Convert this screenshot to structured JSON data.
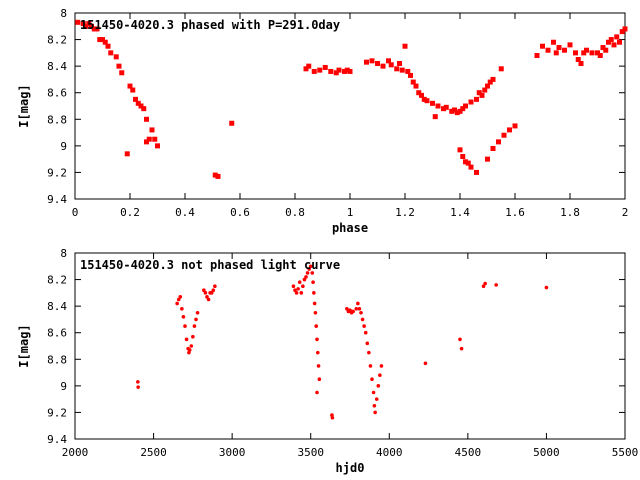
{
  "chart_data": [
    {
      "type": "scatter",
      "title": "151450-4020.3 phased with P=291.0day",
      "xlabel": "phase",
      "ylabel": "I[mag]",
      "xlim": [
        0,
        2
      ],
      "ylim": [
        9.4,
        8
      ],
      "y_inverted": true,
      "x_ticks": [
        "0",
        "0.2",
        "0.4",
        "0.6",
        "0.8",
        "1",
        "1.2",
        "1.4",
        "1.6",
        "1.8",
        "2"
      ],
      "y_ticks": [
        "8",
        "8.2",
        "8.4",
        "8.6",
        "8.8",
        "9",
        "9.2",
        "9.4"
      ],
      "marker_color": "#ff0000",
      "series": [
        {
          "points": [
            [
              0.01,
              8.07
            ],
            [
              0.03,
              8.08
            ],
            [
              0.04,
              8.1
            ],
            [
              0.05,
              8.08
            ],
            [
              0.06,
              8.1
            ],
            [
              0.07,
              8.12
            ],
            [
              0.08,
              8.12
            ],
            [
              0.09,
              8.2
            ],
            [
              0.1,
              8.2
            ],
            [
              0.11,
              8.22
            ],
            [
              0.12,
              8.25
            ],
            [
              0.13,
              8.3
            ],
            [
              0.15,
              8.33
            ],
            [
              0.16,
              8.4
            ],
            [
              0.17,
              8.45
            ],
            [
              0.19,
              9.06
            ],
            [
              0.2,
              8.55
            ],
            [
              0.21,
              8.58
            ],
            [
              0.22,
              8.65
            ],
            [
              0.23,
              8.68
            ],
            [
              0.24,
              8.7
            ],
            [
              0.25,
              8.72
            ],
            [
              0.26,
              8.8
            ],
            [
              0.26,
              8.97
            ],
            [
              0.27,
              8.95
            ],
            [
              0.28,
              8.88
            ],
            [
              0.29,
              8.95
            ],
            [
              0.3,
              9.0
            ],
            [
              0.51,
              9.22
            ],
            [
              0.52,
              9.23
            ],
            [
              0.57,
              8.83
            ],
            [
              0.84,
              8.42
            ],
            [
              0.85,
              8.4
            ],
            [
              0.87,
              8.44
            ],
            [
              0.89,
              8.43
            ],
            [
              0.91,
              8.41
            ],
            [
              0.93,
              8.44
            ],
            [
              0.95,
              8.45
            ],
            [
              0.96,
              8.43
            ],
            [
              0.98,
              8.44
            ],
            [
              0.99,
              8.43
            ],
            [
              1.0,
              8.44
            ],
            [
              1.06,
              8.37
            ],
            [
              1.08,
              8.36
            ],
            [
              1.1,
              8.38
            ],
            [
              1.12,
              8.4
            ],
            [
              1.14,
              8.36
            ],
            [
              1.15,
              8.39
            ],
            [
              1.17,
              8.42
            ],
            [
              1.18,
              8.38
            ],
            [
              1.19,
              8.43
            ],
            [
              1.2,
              8.25
            ],
            [
              1.21,
              8.44
            ],
            [
              1.22,
              8.47
            ],
            [
              1.23,
              8.52
            ],
            [
              1.24,
              8.55
            ],
            [
              1.25,
              8.6
            ],
            [
              1.26,
              8.62
            ],
            [
              1.27,
              8.65
            ],
            [
              1.28,
              8.66
            ],
            [
              1.3,
              8.68
            ],
            [
              1.31,
              8.78
            ],
            [
              1.32,
              8.7
            ],
            [
              1.34,
              8.72
            ],
            [
              1.35,
              8.71
            ],
            [
              1.37,
              8.74
            ],
            [
              1.38,
              8.73
            ],
            [
              1.39,
              8.75
            ],
            [
              1.4,
              8.74
            ],
            [
              1.41,
              8.72
            ],
            [
              1.42,
              8.7
            ],
            [
              1.44,
              8.67
            ],
            [
              1.46,
              8.65
            ],
            [
              1.47,
              8.6
            ],
            [
              1.48,
              8.62
            ],
            [
              1.49,
              8.58
            ],
            [
              1.5,
              8.55
            ],
            [
              1.51,
              8.52
            ],
            [
              1.52,
              8.5
            ],
            [
              1.55,
              8.42
            ],
            [
              1.4,
              9.03
            ],
            [
              1.41,
              9.08
            ],
            [
              1.42,
              9.12
            ],
            [
              1.43,
              9.13
            ],
            [
              1.44,
              9.16
            ],
            [
              1.46,
              9.2
            ],
            [
              1.5,
              9.1
            ],
            [
              1.52,
              9.02
            ],
            [
              1.54,
              8.97
            ],
            [
              1.56,
              8.92
            ],
            [
              1.58,
              8.88
            ],
            [
              1.6,
              8.85
            ],
            [
              1.68,
              8.32
            ],
            [
              1.7,
              8.25
            ],
            [
              1.72,
              8.28
            ],
            [
              1.74,
              8.22
            ],
            [
              1.75,
              8.3
            ],
            [
              1.76,
              8.26
            ],
            [
              1.78,
              8.28
            ],
            [
              1.8,
              8.24
            ],
            [
              1.82,
              8.3
            ],
            [
              1.83,
              8.35
            ],
            [
              1.84,
              8.38
            ],
            [
              1.85,
              8.3
            ],
            [
              1.86,
              8.28
            ],
            [
              1.88,
              8.3
            ],
            [
              1.9,
              8.3
            ],
            [
              1.91,
              8.32
            ],
            [
              1.92,
              8.26
            ],
            [
              1.93,
              8.28
            ],
            [
              1.94,
              8.22
            ],
            [
              1.95,
              8.2
            ],
            [
              1.96,
              8.24
            ],
            [
              1.97,
              8.18
            ],
            [
              1.98,
              8.22
            ],
            [
              1.99,
              8.14
            ],
            [
              2.0,
              8.12
            ]
          ]
        }
      ]
    },
    {
      "type": "scatter",
      "title": "151450-4020.3 not phased light curve",
      "xlabel": "hjd0",
      "ylabel": "I[mag]",
      "xlim": [
        2000,
        5500
      ],
      "ylim": [
        9.4,
        8
      ],
      "y_inverted": true,
      "x_ticks": [
        "2000",
        "2500",
        "3000",
        "3500",
        "4000",
        "4500",
        "5000",
        "5500"
      ],
      "y_ticks": [
        "8",
        "8.2",
        "8.4",
        "8.6",
        "8.8",
        "9",
        "9.2",
        "9.4"
      ],
      "marker_color": "#ff0000",
      "series": [
        {
          "points": [
            [
              2400,
              8.97
            ],
            [
              2402,
              9.01
            ],
            [
              2650,
              8.38
            ],
            [
              2660,
              8.35
            ],
            [
              2670,
              8.33
            ],
            [
              2680,
              8.42
            ],
            [
              2690,
              8.48
            ],
            [
              2700,
              8.55
            ],
            [
              2710,
              8.65
            ],
            [
              2720,
              8.72
            ],
            [
              2725,
              8.75
            ],
            [
              2730,
              8.73
            ],
            [
              2740,
              8.7
            ],
            [
              2750,
              8.63
            ],
            [
              2760,
              8.55
            ],
            [
              2770,
              8.5
            ],
            [
              2780,
              8.45
            ],
            [
              2820,
              8.28
            ],
            [
              2830,
              8.3
            ],
            [
              2840,
              8.33
            ],
            [
              2850,
              8.35
            ],
            [
              2860,
              8.3
            ],
            [
              2870,
              8.3
            ],
            [
              2880,
              8.28
            ],
            [
              2890,
              8.25
            ],
            [
              3390,
              8.25
            ],
            [
              3400,
              8.28
            ],
            [
              3410,
              8.3
            ],
            [
              3420,
              8.27
            ],
            [
              3430,
              8.22
            ],
            [
              3440,
              8.3
            ],
            [
              3450,
              8.25
            ],
            [
              3460,
              8.2
            ],
            [
              3470,
              8.18
            ],
            [
              3480,
              8.15
            ],
            [
              3490,
              8.12
            ],
            [
              3500,
              8.1
            ],
            [
              3510,
              8.15
            ],
            [
              3515,
              8.22
            ],
            [
              3520,
              8.3
            ],
            [
              3525,
              8.38
            ],
            [
              3530,
              8.45
            ],
            [
              3535,
              8.55
            ],
            [
              3540,
              8.65
            ],
            [
              3545,
              8.75
            ],
            [
              3550,
              8.85
            ],
            [
              3555,
              8.95
            ],
            [
              3540,
              9.05
            ],
            [
              3635,
              9.22
            ],
            [
              3638,
              9.24
            ],
            [
              3730,
              8.42
            ],
            [
              3740,
              8.44
            ],
            [
              3750,
              8.43
            ],
            [
              3760,
              8.45
            ],
            [
              3770,
              8.44
            ],
            [
              3790,
              8.42
            ],
            [
              3800,
              8.38
            ],
            [
              3810,
              8.42
            ],
            [
              3820,
              8.45
            ],
            [
              3830,
              8.5
            ],
            [
              3840,
              8.55
            ],
            [
              3850,
              8.6
            ],
            [
              3860,
              8.68
            ],
            [
              3870,
              8.75
            ],
            [
              3880,
              8.85
            ],
            [
              3890,
              8.95
            ],
            [
              3900,
              9.05
            ],
            [
              3905,
              9.15
            ],
            [
              3910,
              9.2
            ],
            [
              3920,
              9.1
            ],
            [
              3930,
              9.0
            ],
            [
              3940,
              8.92
            ],
            [
              3950,
              8.85
            ],
            [
              4230,
              8.83
            ],
            [
              4450,
              8.65
            ],
            [
              4460,
              8.72
            ],
            [
              4600,
              8.25
            ],
            [
              4610,
              8.23
            ],
            [
              4680,
              8.24
            ],
            [
              5000,
              8.26
            ]
          ]
        }
      ]
    }
  ]
}
